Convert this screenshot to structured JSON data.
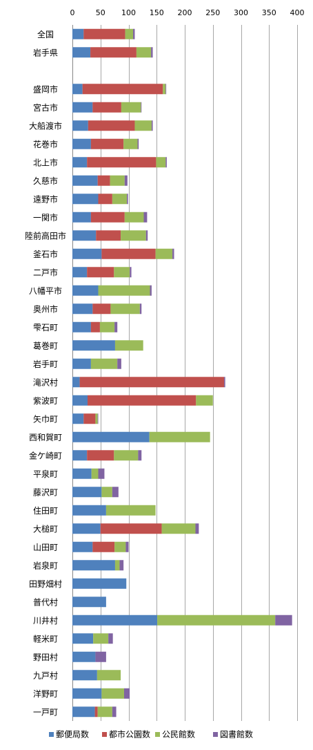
{
  "chart_data": {
    "type": "bar",
    "orientation": "horizontal",
    "stacked": true,
    "xlim": [
      0,
      400
    ],
    "xticks": [
      0,
      50,
      100,
      150,
      200,
      250,
      300,
      350,
      400
    ],
    "grid": true,
    "legend_position": "bottom",
    "categories": [
      "全国",
      "岩手県",
      "",
      "盛岡市",
      "宮古市",
      "大船渡市",
      "花巻市",
      "北上市",
      "久慈市",
      "遠野市",
      "一関市",
      "陸前高田市",
      "釜石市",
      "二戸市",
      "八幡平市",
      "奥州市",
      "雫石町",
      "葛巻町",
      "岩手町",
      "滝沢村",
      "紫波町",
      "矢巾町",
      "西和賀町",
      "金ケ崎町",
      "平泉町",
      "藤沢町",
      "住田町",
      "大槌町",
      "山田町",
      "岩泉町",
      "田野畑村",
      "普代村",
      "川井村",
      "軽米町",
      "野田村",
      "九戸村",
      "洋野町",
      "一戸町"
    ],
    "series": [
      {
        "name": "郵便局数",
        "color": "#4f81bd",
        "values": [
          20,
          32,
          null,
          18,
          36,
          28,
          33,
          26,
          45,
          46,
          33,
          42,
          52,
          26,
          46,
          36,
          33,
          76,
          33,
          13,
          27,
          20,
          137,
          26,
          34,
          52,
          60,
          50,
          36,
          76,
          96,
          60,
          151,
          37,
          41,
          44,
          52,
          40
        ]
      },
      {
        "name": "都市公園数",
        "color": "#c0504d",
        "values": [
          74,
          82,
          null,
          143,
          51,
          83,
          58,
          123,
          22,
          25,
          60,
          44,
          96,
          48,
          0,
          32,
          16,
          0,
          0,
          257,
          193,
          21,
          0,
          48,
          0,
          0,
          0,
          109,
          39,
          0,
          0,
          0,
          0,
          0,
          0,
          0,
          0,
          5
        ]
      },
      {
        "name": "公民館数",
        "color": "#9bbb59",
        "values": [
          14,
          26,
          null,
          5,
          35,
          30,
          25,
          17,
          26,
          26,
          34,
          45,
          30,
          28,
          92,
          52,
          26,
          50,
          47,
          0,
          30,
          4,
          108,
          43,
          12,
          19,
          88,
          60,
          20,
          8,
          0,
          0,
          210,
          27,
          0,
          42,
          40,
          26
        ]
      },
      {
        "name": "図書館数",
        "color": "#8064a2",
        "values": [
          3,
          3,
          null,
          1,
          1,
          2,
          2,
          2,
          5,
          2,
          6,
          3,
          3,
          3,
          3,
          3,
          5,
          0,
          7,
          2,
          0,
          1,
          0,
          6,
          11,
          11,
          0,
          6,
          5,
          7,
          0,
          0,
          30,
          8,
          19,
          0,
          10,
          7
        ]
      }
    ]
  }
}
